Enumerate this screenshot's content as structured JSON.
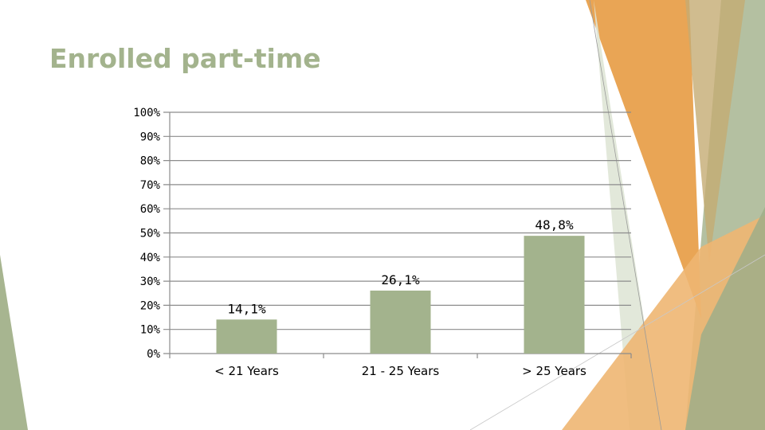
{
  "slide": {
    "title": "Enrolled part-time"
  },
  "theme": {
    "bar_color": "#a3b38d",
    "grid_color": "#8c8c8c",
    "title_color": "#a3b38d",
    "accent_orange": "#e8a04c",
    "accent_green": "#a7b590"
  },
  "chart_data": {
    "type": "bar",
    "title": "",
    "xlabel": "",
    "ylabel": "",
    "categories": [
      "< 21 Years",
      "21 - 25 Years",
      "> 25 Years"
    ],
    "values": [
      14.1,
      26.1,
      48.8
    ],
    "data_labels": [
      "14,1%",
      "26,1%",
      "48,8%"
    ],
    "ylim": [
      0,
      100
    ],
    "y_ticks": [
      "0%",
      "10%",
      "20%",
      "30%",
      "40%",
      "50%",
      "60%",
      "70%",
      "80%",
      "90%",
      "100%"
    ],
    "grid": true,
    "legend": "none"
  }
}
